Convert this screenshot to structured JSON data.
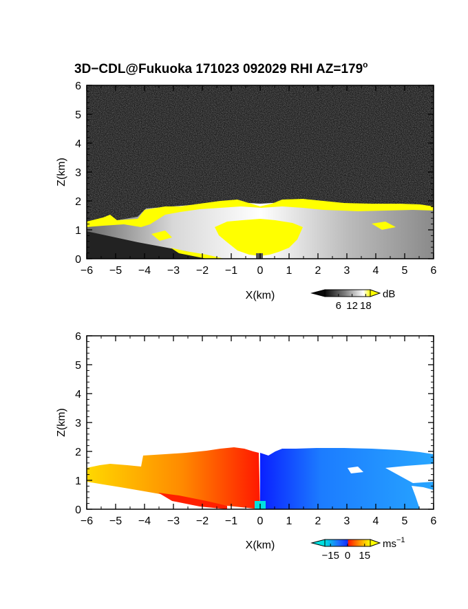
{
  "figure": {
    "title_main": "3D−CDL@Fukuoka 171023 092029 RHI AZ=179",
    "title_degree": "o"
  },
  "chart_data": [
    {
      "type": "heatmap",
      "panel": "backscatter",
      "x_ticks": [
        "−6",
        "−5",
        "−4",
        "−3",
        "−2",
        "−1",
        "0",
        "1",
        "2",
        "3",
        "4",
        "5",
        "6"
      ],
      "y_ticks": [
        "0",
        "1",
        "2",
        "3",
        "4",
        "5",
        "6"
      ],
      "xlim": [
        -6,
        6
      ],
      "ylim": [
        0,
        6
      ],
      "xlabel": "X(km)",
      "ylabel": "Z(km)",
      "colorbar": {
        "unit": "dB",
        "ticks": [
          "6",
          "12",
          "18"
        ],
        "range": [
          0,
          20
        ],
        "colors": [
          "#0a0a0a",
          "#ffffff",
          "#ffff00"
        ]
      },
      "features": {
        "background": "noise",
        "saturated_color": "#ffff00",
        "layer_top_km": 1.9,
        "saturated_core_x_km": [
          -1.2,
          1.3
        ]
      }
    },
    {
      "type": "heatmap",
      "panel": "doppler_velocity",
      "x_ticks": [
        "−6",
        "−5",
        "−4",
        "−3",
        "−2",
        "−1",
        "0",
        "1",
        "2",
        "3",
        "4",
        "5",
        "6"
      ],
      "y_ticks": [
        "0",
        "1",
        "2",
        "3",
        "4",
        "5",
        "6"
      ],
      "xlim": [
        -6,
        6
      ],
      "ylim": [
        0,
        6
      ],
      "xlabel": "X(km)",
      "ylabel": "Z(km)",
      "colorbar": {
        "unit": "ms",
        "unit_sup": "−1",
        "ticks": [
          "−15",
          "0",
          "15"
        ],
        "range": [
          -20,
          20
        ],
        "colors": [
          "#00e0e0",
          "#1040ff",
          "#ff2000",
          "#ffff00"
        ]
      },
      "features": {
        "negative_side": "x>0",
        "positive_side": "x<0"
      }
    }
  ]
}
